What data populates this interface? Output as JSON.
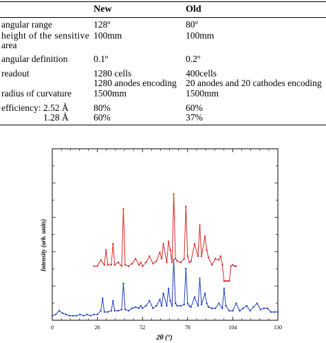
{
  "table": {
    "headers": {
      "new": "New",
      "old": "Old"
    },
    "rows": [
      {
        "label": "angular range",
        "new": "128º",
        "old": "80º"
      },
      {
        "label_line1": "height of the sensitive",
        "label_line2": "area",
        "new": "100mm",
        "old": "100mm"
      },
      {
        "label": "angular definition",
        "new": "0.1º",
        "old": "0.2º"
      },
      {
        "label": "readout",
        "new": "1280 cells",
        "old": "400cells",
        "new2": "1280 anodes encoding",
        "old2": "20 anodes and 20 cathodes encoding"
      },
      {
        "label": "radius of curvature",
        "new": "1500mm",
        "old": "1500mm"
      },
      {
        "label": "efficiency: 2.52 Å",
        "new": "80%",
        "old": "60%"
      },
      {
        "label": "1.28 Å",
        "new": "60%",
        "old": "37%"
      }
    ]
  },
  "chart_data": {
    "type": "line",
    "xlabel": "2θ (°)",
    "ylabel": "Intensity (arb. units)",
    "xlim": [
      0,
      130
    ],
    "x_ticks": [
      "0",
      "26",
      "52",
      "78",
      "104",
      "130"
    ],
    "series": [
      {
        "color": "#d62728",
        "x": [
          24,
          26,
          28,
          30,
          31,
          32,
          34,
          35,
          36,
          38,
          40,
          41,
          42,
          44,
          46,
          48,
          50,
          51,
          52,
          54,
          56,
          58,
          60,
          62,
          63,
          64,
          66,
          67,
          68,
          69,
          70,
          71,
          72,
          74,
          76,
          77,
          78,
          79,
          80,
          82,
          84,
          85,
          86,
          88,
          89,
          90,
          92,
          94,
          96,
          97,
          98,
          99,
          100,
          101,
          102,
          103,
          104,
          105,
          106
        ],
        "y": [
          0.42,
          0.42,
          0.47,
          0.43,
          0.55,
          0.43,
          0.43,
          0.6,
          0.43,
          0.45,
          0.42,
          0.88,
          0.43,
          0.42,
          0.44,
          0.48,
          0.43,
          0.45,
          0.42,
          0.45,
          0.5,
          0.44,
          0.46,
          0.53,
          0.48,
          0.6,
          0.45,
          0.62,
          0.55,
          0.45,
          1.0,
          0.48,
          0.46,
          0.45,
          0.48,
          0.9,
          0.5,
          0.45,
          0.46,
          0.6,
          0.5,
          0.75,
          0.5,
          0.66,
          0.55,
          0.49,
          0.43,
          0.48,
          0.47,
          0.5,
          0.43,
          0.3,
          0.3,
          0.3,
          0.3,
          0.42,
          0.43,
          0.42,
          0.42
        ]
      },
      {
        "color": "#1f3fbf",
        "x": [
          0,
          2,
          4,
          6,
          8,
          10,
          12,
          14,
          16,
          18,
          20,
          22,
          24,
          26,
          28,
          29,
          30,
          32,
          34,
          35,
          36,
          38,
          40,
          41,
          42,
          44,
          46,
          48,
          50,
          51,
          52,
          54,
          56,
          58,
          60,
          62,
          63,
          64,
          66,
          67,
          68,
          69,
          70,
          71,
          72,
          74,
          76,
          77,
          78,
          79,
          80,
          82,
          84,
          85,
          86,
          88,
          89,
          90,
          92,
          94,
          96,
          98,
          99,
          100,
          102,
          104,
          106,
          108,
          110,
          112,
          114,
          116,
          118,
          120,
          122,
          124,
          126,
          128,
          130
        ],
        "y": [
          0.02,
          0.03,
          0.06,
          0.04,
          0.03,
          0.02,
          0.02,
          0.02,
          0.03,
          0.02,
          0.03,
          0.02,
          0.03,
          0.03,
          0.06,
          0.16,
          0.05,
          0.05,
          0.06,
          0.14,
          0.06,
          0.06,
          0.07,
          0.28,
          0.07,
          0.06,
          0.08,
          0.09,
          0.08,
          0.1,
          0.08,
          0.1,
          0.14,
          0.08,
          0.1,
          0.15,
          0.1,
          0.2,
          0.1,
          0.24,
          0.14,
          0.1,
          0.47,
          0.12,
          0.1,
          0.1,
          0.11,
          0.4,
          0.12,
          0.1,
          0.09,
          0.17,
          0.1,
          0.32,
          0.11,
          0.2,
          0.12,
          0.09,
          0.08,
          0.08,
          0.12,
          0.08,
          0.24,
          0.1,
          0.06,
          0.06,
          0.12,
          0.06,
          0.08,
          0.1,
          0.06,
          0.09,
          0.12,
          0.07,
          0.08,
          0.08,
          0.05,
          0.05,
          0.05
        ]
      }
    ]
  }
}
